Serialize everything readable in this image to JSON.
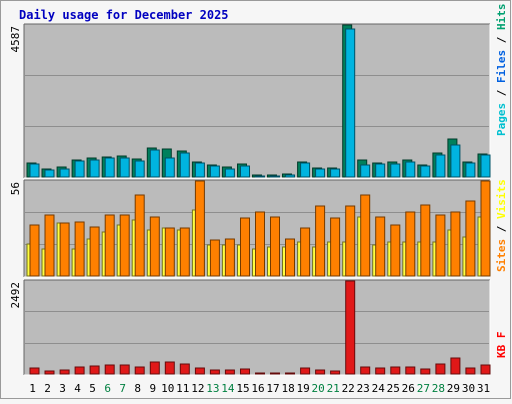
{
  "chart_data": {
    "type": "bar",
    "title": "Daily usage for December 2025",
    "days": [
      "1",
      "2",
      "3",
      "4",
      "5",
      "6",
      "7",
      "8",
      "9",
      "10",
      "11",
      "12",
      "13",
      "14",
      "15",
      "16",
      "17",
      "18",
      "19",
      "20",
      "21",
      "22",
      "23",
      "24",
      "25",
      "26",
      "27",
      "28",
      "29",
      "30",
      "31"
    ],
    "weekend_days": [
      "6",
      "7",
      "13",
      "14",
      "20",
      "21",
      "27",
      "28"
    ],
    "panels": [
      {
        "name": "requests",
        "scale_label": "4587",
        "max": 4587,
        "legend": [
          {
            "text": "Pages",
            "color": "#00c0d0"
          },
          {
            "text": " / ",
            "color": "#000000"
          },
          {
            "text": "Files",
            "color": "#0060e0"
          },
          {
            "text": " / ",
            "color": "#000000"
          },
          {
            "text": "Hits",
            "color": "#00a070"
          }
        ],
        "series": [
          {
            "name": "Hits",
            "color": "#00805c",
            "values": [
              430,
              240,
              290,
              520,
              570,
              600,
              620,
              530,
              880,
              840,
              780,
              440,
              350,
              290,
              380,
              60,
              60,
              100,
              450,
              280,
              260,
              4587,
              510,
              420,
              440,
              500,
              360,
              730,
              1160,
              460,
              700
            ]
          },
          {
            "name": "Files",
            "color": "#00b4e0",
            "values": [
              380,
              200,
              240,
              470,
              520,
              560,
              570,
              490,
              810,
              560,
              720,
              410,
              320,
              250,
              340,
              40,
              40,
              70,
              410,
              240,
              230,
              4460,
              360,
              380,
              400,
              450,
              330,
              670,
              960,
              420,
              660
            ]
          }
        ]
      },
      {
        "name": "visitors",
        "scale_label": "56",
        "max": 56,
        "legend": [
          {
            "text": "Sites",
            "color": "#ff8000"
          },
          {
            "text": " / ",
            "color": "#000000"
          },
          {
            "text": "Visits",
            "color": "#ffff00"
          }
        ],
        "series": [
          {
            "name": "Visits",
            "color": "#ffff40",
            "values": [
              19,
              16,
              31,
              16,
              22,
              26,
              30,
              33,
              27,
              28,
              27,
              39,
              18,
              18,
              18,
              16,
              17,
              17,
              20,
              17,
              20,
              20,
              35,
              18,
              20,
              20,
              20,
              20,
              27,
              23,
              35
            ]
          },
          {
            "name": "Sites",
            "color": "#ff8000",
            "values": [
              30,
              36,
              31,
              32,
              29,
              36,
              36,
              48,
              35,
              28,
              28,
              56,
              21,
              22,
              34,
              38,
              35,
              22,
              28,
              41,
              34,
              41,
              48,
              35,
              30,
              38,
              42,
              36,
              38,
              44,
              56
            ]
          }
        ]
      },
      {
        "name": "traffic",
        "scale_label": "2492",
        "max": 2492,
        "legend": [
          {
            "text": "KB F",
            "color": "#ff0000"
          }
        ],
        "series": [
          {
            "name": "KB F",
            "color": "#e01818",
            "values": [
              170,
              90,
              120,
              200,
              210,
              230,
              240,
              190,
              330,
              310,
              280,
              160,
              120,
              100,
              130,
              20,
              20,
              40,
              170,
              100,
              90,
              2492,
              190,
              160,
              180,
              180,
              140,
              280,
              440,
              170,
              240
            ]
          }
        ]
      }
    ],
    "grid": true,
    "legend_position": "right-vertical"
  }
}
